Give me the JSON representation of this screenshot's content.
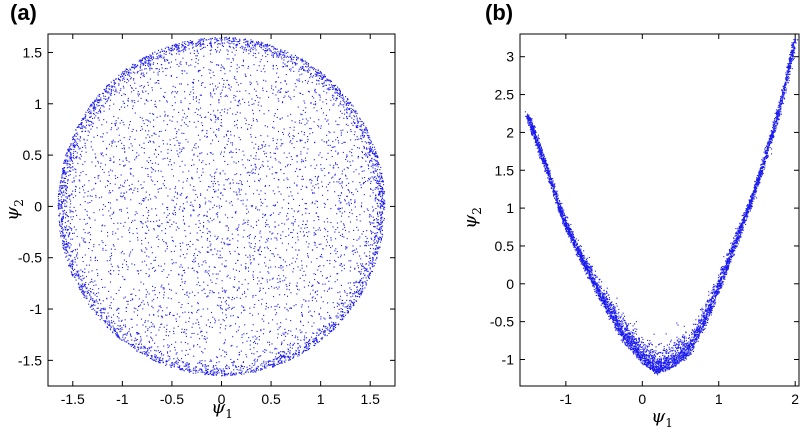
{
  "chart_data": [
    {
      "type": "scatter",
      "panel_label": "(a)",
      "title": "",
      "xlabel": "ψ1",
      "ylabel": "ψ2",
      "xlim": [
        -1.75,
        1.75
      ],
      "ylim": [
        -1.75,
        1.68
      ],
      "xticks": [
        -1.5,
        -1,
        -0.5,
        0,
        0.5,
        1,
        1.5
      ],
      "xtick_labels": [
        "-1.5",
        "-1",
        "-0.5",
        "0",
        "0.5",
        "1",
        "1.5"
      ],
      "yticks": [
        -1.5,
        -1,
        -0.5,
        0,
        0.5,
        1,
        1.5
      ],
      "ytick_labels": [
        "-1.5",
        "-1",
        "-0.5",
        "0",
        "0.5",
        "1",
        "1.5"
      ],
      "grid": false,
      "marker_color": "#1a1aee",
      "series": [
        {
          "values_description": "points filling a disk of radius ~1.65 centered at (0,0), denser near the rim",
          "x": [
            1.62,
            1.55,
            1.4,
            1.15,
            0.82,
            0.4,
            0.0,
            -0.4,
            -0.82,
            -1.15,
            -1.4,
            -1.55,
            -1.62,
            -1.55,
            -1.4,
            -1.15,
            -0.82,
            -0.4,
            0.0,
            0.4,
            0.82,
            1.15,
            1.4,
            1.55,
            0.3,
            -0.5,
            0.8,
            -1.0,
            0.1,
            0.6,
            -0.2,
            1.1,
            -0.9,
            0.0
          ],
          "y": [
            0.0,
            0.45,
            0.85,
            1.18,
            1.42,
            1.58,
            1.65,
            1.58,
            1.42,
            1.18,
            0.85,
            0.45,
            0.0,
            -0.45,
            -0.85,
            -1.18,
            -1.42,
            -1.58,
            -1.65,
            -1.58,
            -1.42,
            -1.18,
            -0.85,
            -0.45,
            0.4,
            -0.3,
            0.9,
            0.2,
            -1.0,
            -0.6,
            1.2,
            -0.4,
            -0.9,
            0.0
          ]
        }
      ]
    },
    {
      "type": "scatter",
      "panel_label": "(b)",
      "title": "",
      "xlabel": "ψ1",
      "ylabel": "ψ2",
      "xlim": [
        -1.6,
        2.05
      ],
      "ylim": [
        -1.35,
        3.3
      ],
      "xticks": [
        -1,
        0,
        1,
        2
      ],
      "xtick_labels": [
        "-1",
        "0",
        "1",
        "2"
      ],
      "yticks": [
        -1,
        -0.5,
        0,
        0.5,
        1,
        1.5,
        2,
        2.5,
        3
      ],
      "ytick_labels": [
        "-1",
        "-0.5",
        "0",
        "0.5",
        "1",
        "1.5",
        "2",
        "2.5",
        "3"
      ],
      "grid": false,
      "marker_color": "#1a1aee",
      "series": [
        {
          "values_description": "points along a parabola-like curve, minimum about (0.2, -1.2), spreading wider near the bottom",
          "x": [
            -1.5,
            -1.25,
            -1.0,
            -0.75,
            -0.5,
            -0.25,
            0.0,
            0.2,
            0.4,
            0.6,
            0.8,
            1.0,
            1.2,
            1.4,
            1.6,
            1.8,
            2.0
          ],
          "y": [
            2.2,
            1.5,
            0.75,
            0.2,
            -0.3,
            -0.75,
            -1.05,
            -1.2,
            -1.1,
            -0.95,
            -0.6,
            -0.1,
            0.45,
            1.0,
            1.6,
            2.3,
            3.2
          ]
        }
      ]
    }
  ]
}
